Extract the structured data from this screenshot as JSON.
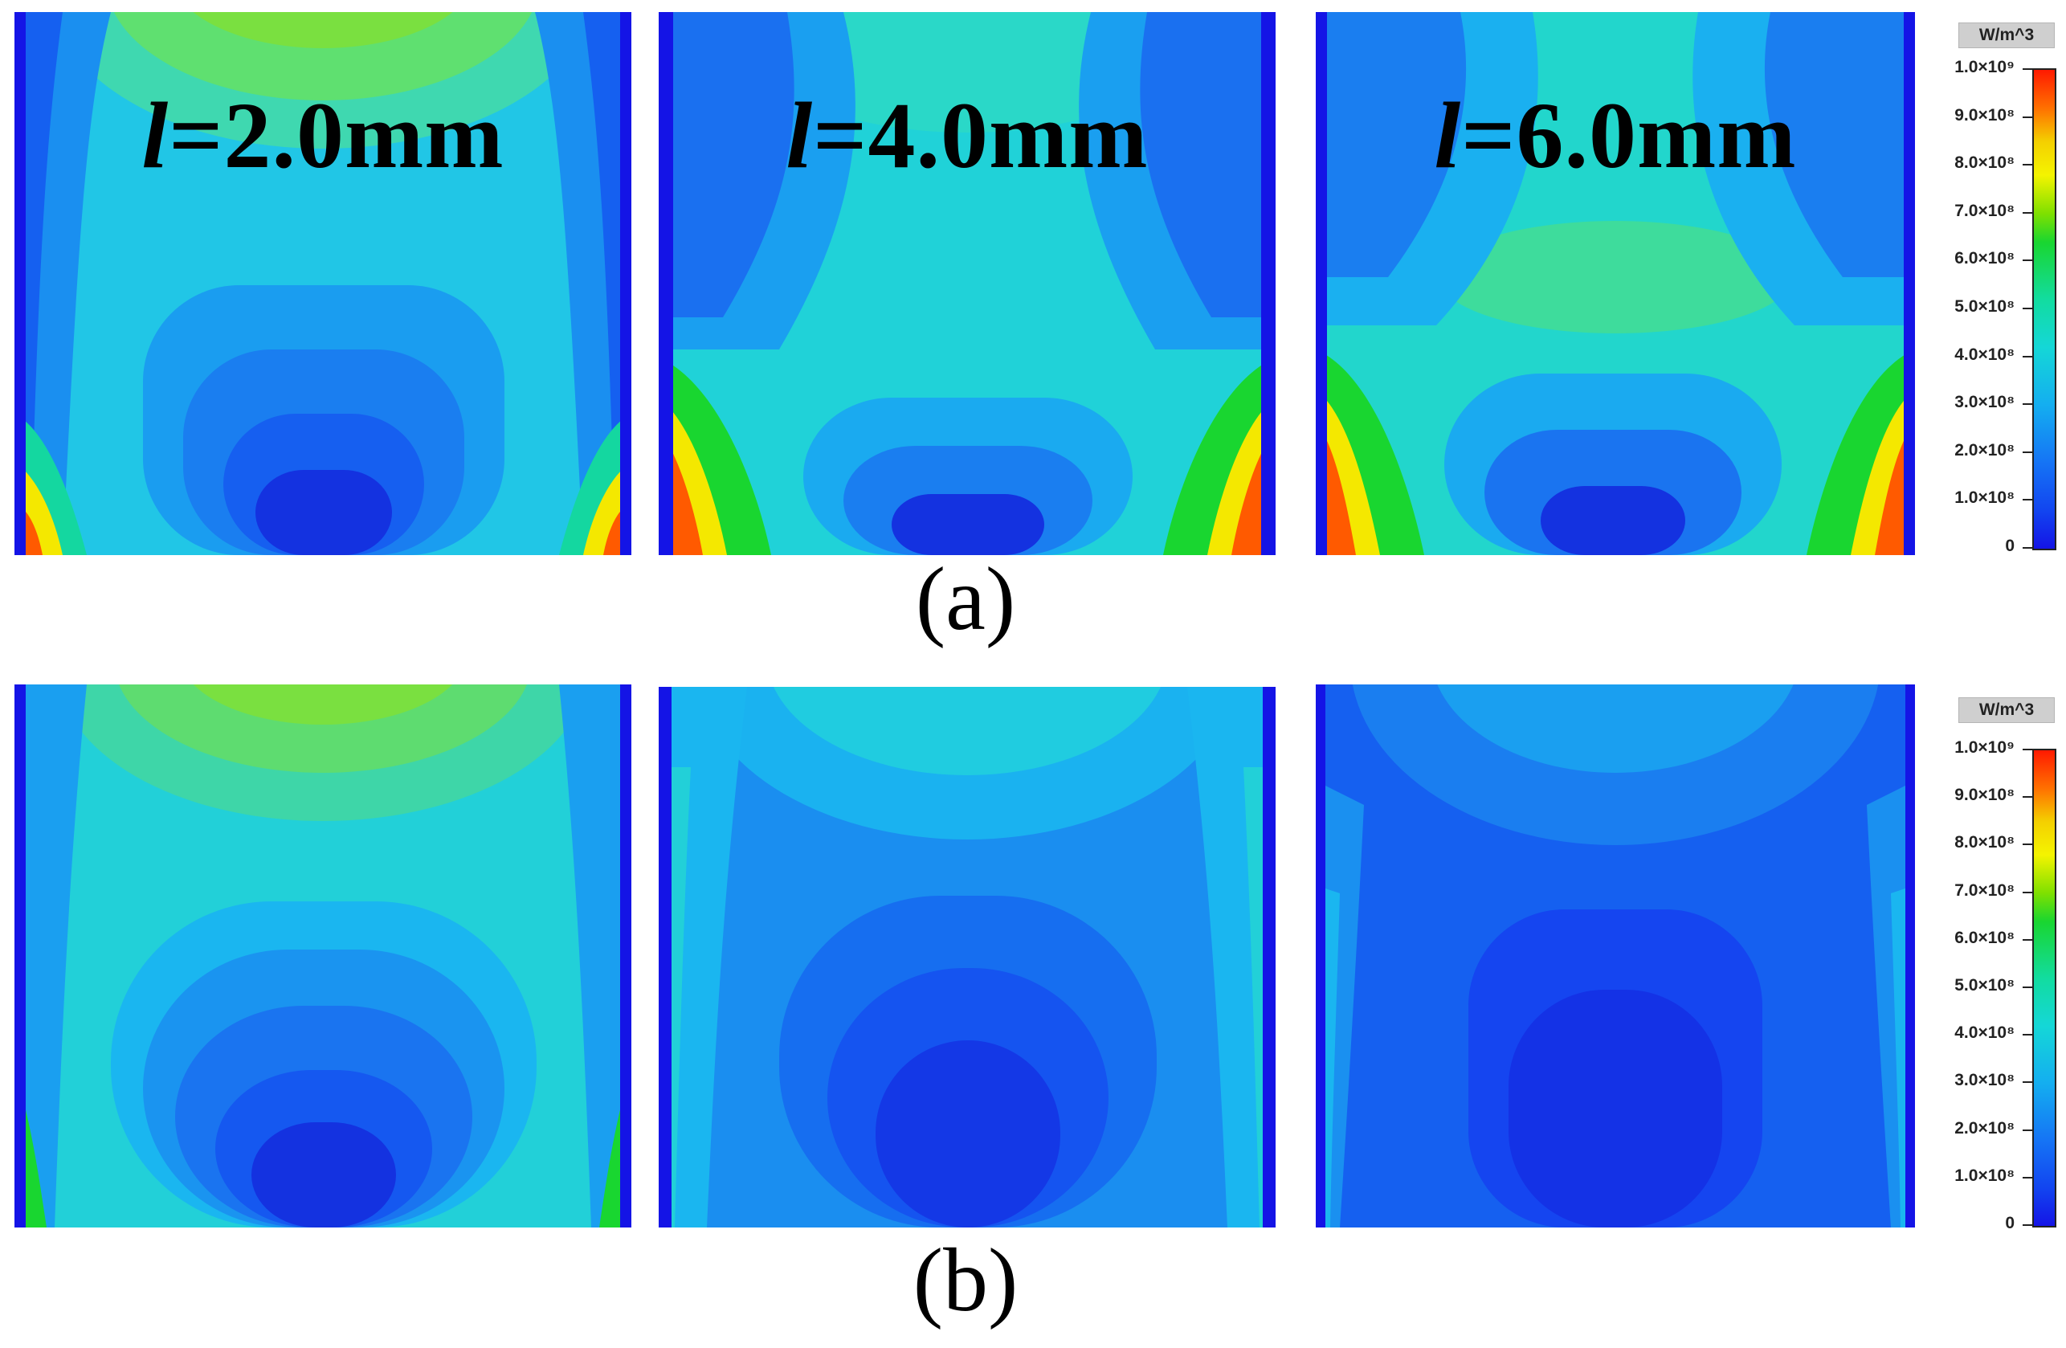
{
  "figure": {
    "row_a": {
      "caption": "(a)",
      "panels": [
        {
          "l_symbol": "l",
          "title_rest": "=2.0mm"
        },
        {
          "l_symbol": "l",
          "title_rest": "=4.0mm"
        },
        {
          "l_symbol": "l",
          "title_rest": "=6.0mm"
        }
      ]
    },
    "row_b": {
      "caption": "(b)"
    },
    "colorbar": {
      "unit": "W/m^3",
      "ticks": [
        "1.0×10⁹",
        "9.0×10⁸",
        "8.0×10⁸",
        "7.0×10⁸",
        "6.0×10⁸",
        "5.0×10⁸",
        "4.0×10⁸",
        "3.0×10⁸",
        "2.0×10⁸",
        "1.0×10⁸",
        "0"
      ],
      "range": [
        0,
        1000000000
      ],
      "colors": [
        "#ff1a00",
        "#ff9a00",
        "#f4e800",
        "#7fe000",
        "#19d630",
        "#12dca0",
        "#14d7d7",
        "#14aef0",
        "#1574f5",
        "#1245f0",
        "#1414e6"
      ]
    }
  }
}
